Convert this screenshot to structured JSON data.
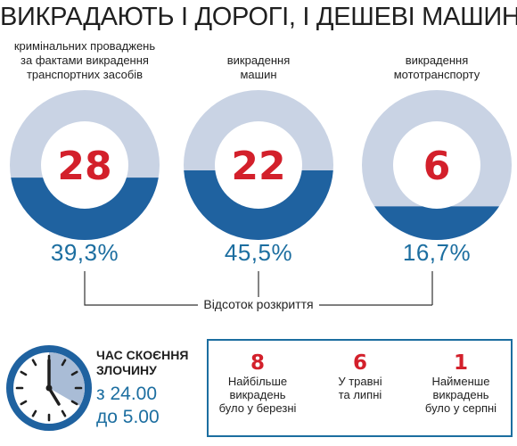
{
  "title": "ВИКРАДАЮТЬ І ДОРОГІ, І ДЕШЕВІ МАШИНИ",
  "colors": {
    "ring": "#c9d3e4",
    "fill": "#1f62a0",
    "number": "#d3202b",
    "percent": "#1c6ea0"
  },
  "chart_data": {
    "type": "pie",
    "title": "ВИКРАДАЮТЬ І ДОРОГІ, І ДЕШЕВІ МАШИНИ",
    "xlabel": "Відсоток розкриття",
    "items": [
      {
        "caption": [
          "кримінальних проваджень",
          "за фактами викрадення",
          "транспортних засобів"
        ],
        "count": "28",
        "fraction": 0.393,
        "percent_label": "39,3%"
      },
      {
        "caption": [
          "викрадення",
          "машин"
        ],
        "count": "22",
        "fraction": 0.455,
        "percent_label": "45,5%"
      },
      {
        "caption": [
          "викрадення",
          "мототранспорту"
        ],
        "count": "6",
        "fraction": 0.167,
        "percent_label": "16,7%"
      }
    ]
  },
  "time": {
    "title": [
      "ЧАС СКОЄННЯ",
      "ЗЛОЧИНУ"
    ],
    "range": [
      "з 24.00",
      "до 5.00"
    ],
    "icon": "clock-icon"
  },
  "stats": [
    {
      "number": "8",
      "text": [
        "Найбільше",
        "викрадень",
        "було у березні"
      ]
    },
    {
      "number": "6",
      "text": [
        "У травні",
        "та липні"
      ]
    },
    {
      "number": "1",
      "text": [
        "Найменше",
        "викрадень",
        "було у серпні"
      ]
    }
  ]
}
